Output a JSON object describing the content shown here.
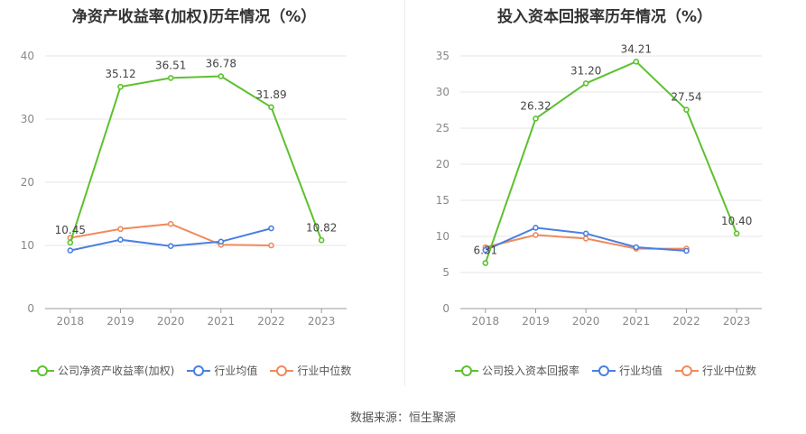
{
  "source": "数据来源：恒生聚源",
  "colors": {
    "company": "#5cc12f",
    "avg": "#4a7fe0",
    "median": "#f08a5d"
  },
  "chart_data": [
    {
      "type": "line",
      "title": "净资产收益率(加权)历年情况（%）",
      "categories": [
        "2018",
        "2019",
        "2020",
        "2021",
        "2022",
        "2023"
      ],
      "ylim": [
        0,
        40
      ],
      "yticks": [
        0,
        10,
        20,
        30,
        40
      ],
      "series": [
        {
          "name": "公司净资产收益率(加权)",
          "key": "company",
          "values": [
            10.45,
            35.12,
            36.51,
            36.78,
            31.89,
            10.82
          ],
          "labels": [
            "10.45",
            "35.12",
            "36.51",
            "36.78",
            "31.89",
            "10.82"
          ]
        },
        {
          "name": "行业均值",
          "key": "avg",
          "values": [
            9.2,
            10.9,
            9.9,
            10.6,
            12.7,
            null
          ]
        },
        {
          "name": "行业中位数",
          "key": "median",
          "values": [
            11.2,
            12.6,
            13.4,
            10.1,
            10.0,
            null
          ]
        }
      ],
      "grid": true,
      "legend": "bottom"
    },
    {
      "type": "line",
      "title": "投入资本回报率历年情况（%）",
      "categories": [
        "2018",
        "2019",
        "2020",
        "2021",
        "2022",
        "2023"
      ],
      "ylim": [
        0,
        35
      ],
      "yticks": [
        0,
        5,
        10,
        15,
        20,
        25,
        30,
        35
      ],
      "series": [
        {
          "name": "公司投入资本回报率",
          "key": "company",
          "values": [
            6.31,
            26.32,
            31.2,
            34.21,
            27.54,
            10.4
          ],
          "labels": [
            "6.31",
            "26.32",
            "31.20",
            "34.21",
            "27.54",
            "10.40"
          ]
        },
        {
          "name": "行业均值",
          "key": "avg",
          "values": [
            8.1,
            11.2,
            10.4,
            8.5,
            8.0,
            null
          ]
        },
        {
          "name": "行业中位数",
          "key": "median",
          "values": [
            8.5,
            10.2,
            9.7,
            8.3,
            8.3,
            null
          ]
        }
      ],
      "grid": true,
      "legend": "bottom"
    }
  ]
}
